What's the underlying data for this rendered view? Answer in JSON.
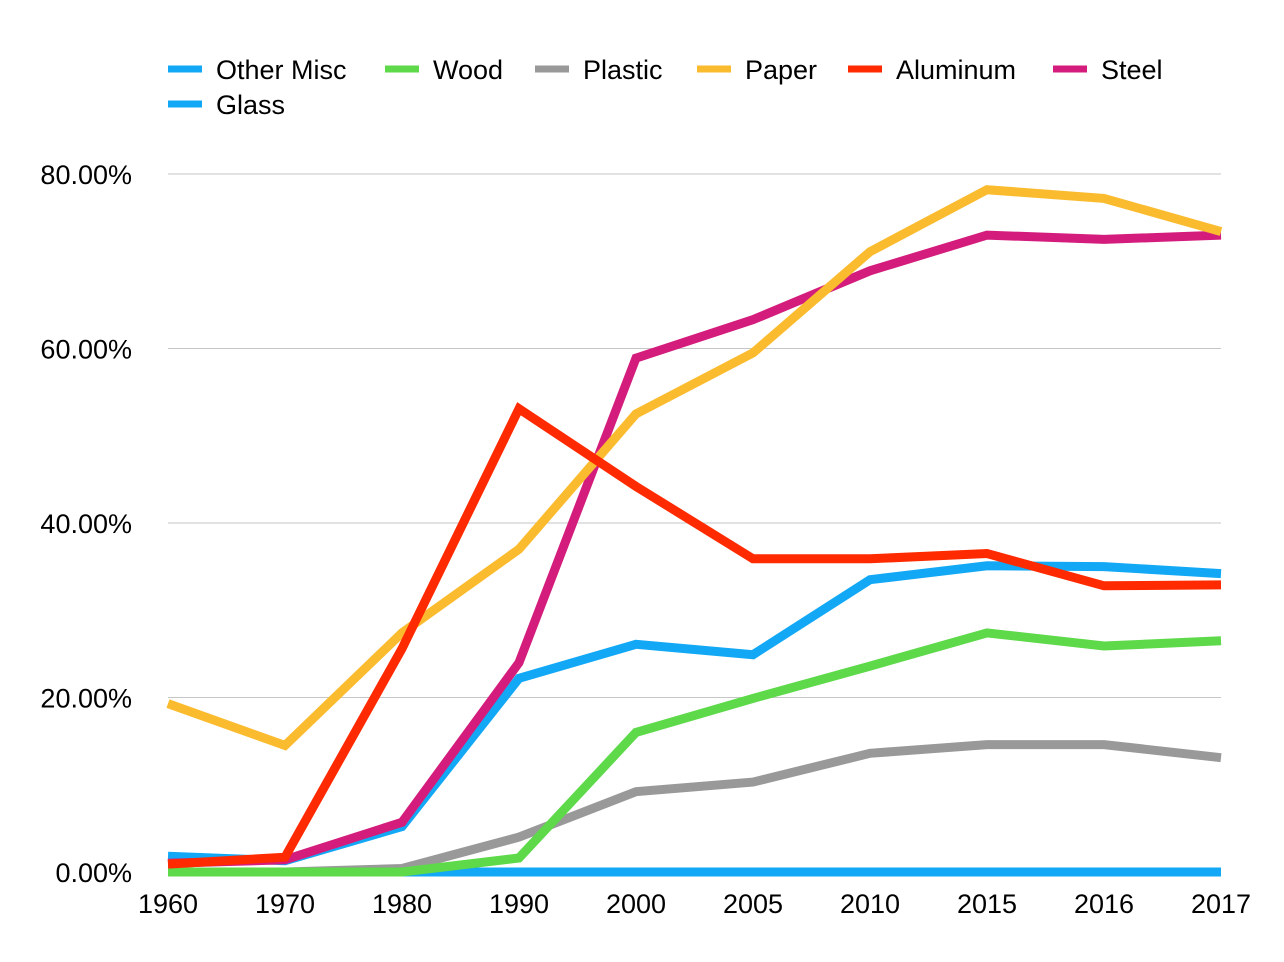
{
  "chart_data": {
    "type": "line",
    "title": "",
    "xlabel": "",
    "ylabel": "",
    "categories": [
      "1960",
      "1970",
      "1980",
      "1990",
      "2000",
      "2005",
      "2010",
      "2015",
      "2016",
      "2017"
    ],
    "ylim": [
      0,
      80
    ],
    "yticks": [
      "0.00%",
      "20.00%",
      "40.00%",
      "60.00%",
      "80.00%"
    ],
    "grid": true,
    "legend_position": "top",
    "series": [
      {
        "name": "Other Misc",
        "color": "#12A8F5",
        "values": [
          0,
          0,
          0,
          0,
          0,
          0,
          0,
          0,
          0,
          0
        ]
      },
      {
        "name": "Wood",
        "color": "#5DD94A",
        "values": [
          0,
          0,
          0,
          1.6,
          16,
          19.9,
          23.6,
          27.4,
          25.9,
          26.5
        ]
      },
      {
        "name": "Plastic",
        "color": "#999999",
        "values": [
          0,
          0,
          0.4,
          4,
          9.2,
          10.3,
          13.6,
          14.6,
          14.6,
          13.1
        ]
      },
      {
        "name": "Paper",
        "color": "#FBBB2E",
        "values": [
          19.3,
          14.5,
          27.4,
          37,
          52.5,
          59.5,
          71.1,
          78.2,
          77.2,
          73.4
        ]
      },
      {
        "name": "Aluminum",
        "color": "#FF2A00",
        "values": [
          0.9,
          1.7,
          25.6,
          53.1,
          44.2,
          35.9,
          35.9,
          36.5,
          32.8,
          32.9
        ]
      },
      {
        "name": "Steel",
        "color": "#D41C7C",
        "values": [
          1,
          1.4,
          5.7,
          24,
          58.9,
          63.3,
          68.9,
          73,
          72.5,
          73
        ]
      },
      {
        "name": "Glass",
        "color": "#12A8F5",
        "values": [
          1.8,
          1.3,
          5.2,
          22.2,
          26.1,
          24.9,
          33.5,
          35.1,
          35,
          34.2
        ]
      }
    ]
  }
}
